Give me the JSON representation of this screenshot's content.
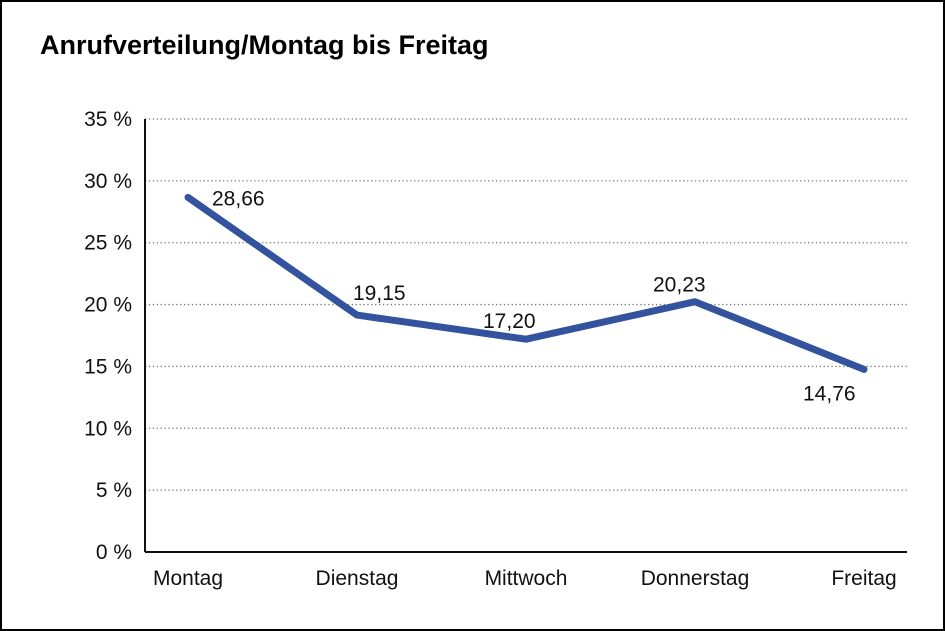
{
  "title": "Anrufverteilung/Montag bis Freitag",
  "chart_data": {
    "type": "line",
    "title": "Anrufverteilung/Montag bis Freitag",
    "categories": [
      "Montag",
      "Dienstag",
      "Mittwoch",
      "Donnerstag",
      "Freitag"
    ],
    "values": [
      28.66,
      19.15,
      17.2,
      20.23,
      14.76
    ],
    "point_labels": [
      "28,66",
      "19,15",
      "17,20",
      "20,23",
      "14,76"
    ],
    "xlabel": "",
    "ylabel": "",
    "ylim": [
      0,
      35
    ],
    "ytick_step": 5,
    "ytick_labels": [
      "0 %",
      "5 %",
      "10 %",
      "15 %",
      "20 %",
      "25 %",
      "30 %",
      "35 %"
    ],
    "grid": "horizontal-dotted",
    "legend": "none",
    "line_color": "#34539e",
    "axis_color": "#111111",
    "gridline_color": "#777777",
    "text_color": "#111111"
  }
}
